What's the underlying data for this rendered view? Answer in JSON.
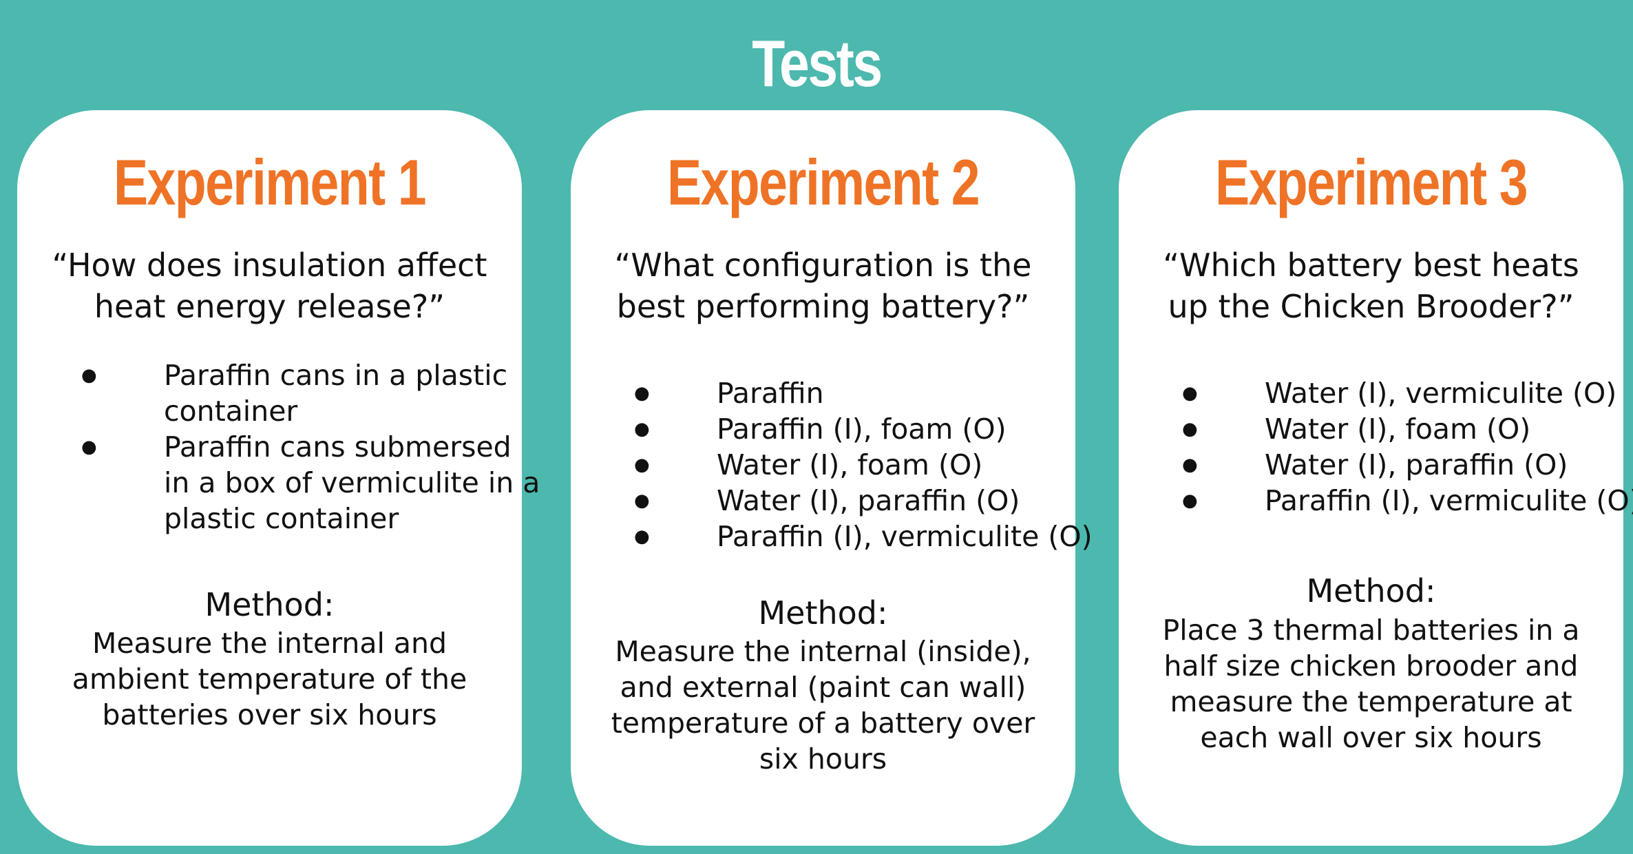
{
  "title": "Tests",
  "experiments": [
    {
      "name": "Experiment 1",
      "question_lines": [
        "“How does insulation affect",
        "heat energy release?”"
      ],
      "items": [
        {
          "lines": [
            "Paraffin cans in a plastic",
            "container"
          ]
        },
        {
          "lines": [
            "Paraffin cans submersed",
            "in a box of vermiculite in a",
            "plastic container"
          ]
        }
      ],
      "method_label": "Method:",
      "method_lines": [
        "Measure the internal and",
        "ambient temperature of the",
        "batteries over six hours"
      ]
    },
    {
      "name": "Experiment 2",
      "question_lines": [
        "“What configuration is the",
        "best performing battery?”"
      ],
      "items": [
        {
          "lines": [
            "Paraffin"
          ]
        },
        {
          "lines": [
            "Paraffin (I), foam (O)"
          ]
        },
        {
          "lines": [
            "Water (I), foam (O)"
          ]
        },
        {
          "lines": [
            "Water (I), paraffin (O)"
          ]
        },
        {
          "lines": [
            "Paraffin (I), vermiculite (O)"
          ]
        }
      ],
      "method_label": "Method:",
      "method_lines": [
        "Measure the internal (inside),",
        "and external (paint can wall)",
        "temperature of a battery over",
        "six hours"
      ]
    },
    {
      "name": "Experiment 3",
      "question_lines": [
        "“Which battery best heats",
        "up the Chicken Brooder?”"
      ],
      "items": [
        {
          "lines": [
            "Water (I), vermiculite (O)"
          ]
        },
        {
          "lines": [
            "Water (I), foam (O)"
          ]
        },
        {
          "lines": [
            "Water (I), paraffin (O)"
          ]
        },
        {
          "lines": [
            "Paraffin (I), vermiculite (O)"
          ]
        }
      ],
      "method_label": "Method:",
      "method_lines": [
        "Place 3 thermal batteries in a",
        "half size chicken brooder and",
        "measure the temperature at",
        "each wall over six hours"
      ]
    }
  ]
}
